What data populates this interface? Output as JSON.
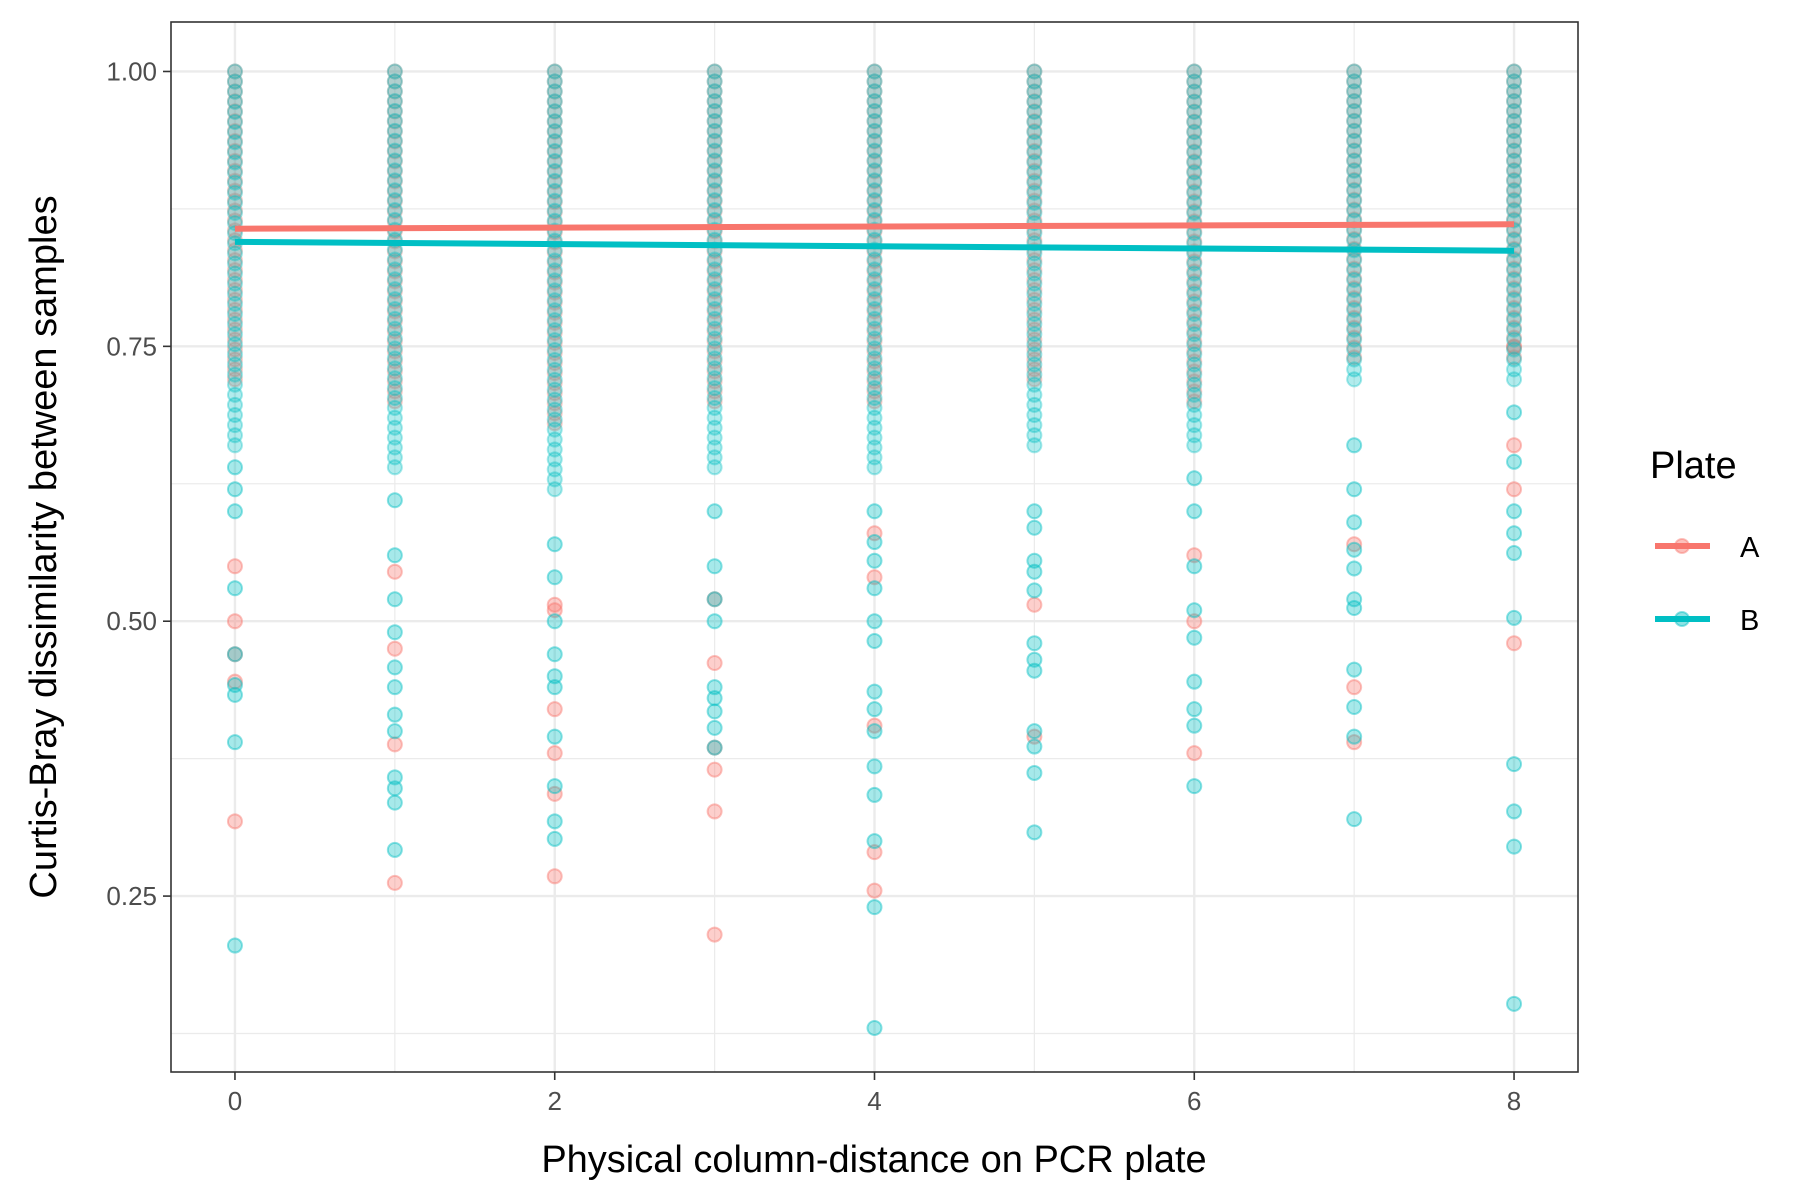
{
  "chart_data": {
    "type": "scatter",
    "xlabel": "Physical column-distance on PCR plate",
    "ylabel": "Curtis-Bray dissimilarity between samples",
    "xlim": [
      -0.4,
      8.4
    ],
    "ylim": [
      0.09,
      1.045
    ],
    "x_ticks": [
      0,
      2,
      4,
      6,
      8
    ],
    "x_tick_labels": [
      "0",
      "2",
      "4",
      "6",
      "8"
    ],
    "y_ticks": [
      0.25,
      0.5,
      0.75,
      1.0
    ],
    "y_tick_labels": [
      "0.25",
      "0.50",
      "0.75",
      "1.00"
    ],
    "grid": true,
    "legend": {
      "title": "Plate",
      "position": "right",
      "entries": [
        "A",
        "B"
      ]
    },
    "colors": {
      "A": "#F8766D",
      "B": "#00BFC4"
    },
    "series": [
      {
        "name": "A",
        "dense_range": [
          [
            0,
            0.72,
            1.0
          ],
          [
            1,
            0.7,
            1.0
          ],
          [
            2,
            0.68,
            1.0
          ],
          [
            3,
            0.7,
            1.0
          ],
          [
            4,
            0.7,
            1.0
          ],
          [
            5,
            0.72,
            1.0
          ],
          [
            6,
            0.7,
            1.0
          ],
          [
            7,
            0.74,
            1.0
          ],
          [
            8,
            0.74,
            1.0
          ]
        ],
        "points": [
          [
            0,
            0.318
          ],
          [
            0,
            0.445
          ],
          [
            0,
            0.47
          ],
          [
            0,
            0.5
          ],
          [
            0,
            0.55
          ],
          [
            1,
            0.262
          ],
          [
            1,
            0.388
          ],
          [
            1,
            0.475
          ],
          [
            1,
            0.545
          ],
          [
            2,
            0.268
          ],
          [
            2,
            0.343
          ],
          [
            2,
            0.38
          ],
          [
            2,
            0.42
          ],
          [
            2,
            0.51
          ],
          [
            2,
            0.515
          ],
          [
            3,
            0.215
          ],
          [
            3,
            0.327
          ],
          [
            3,
            0.365
          ],
          [
            3,
            0.385
          ],
          [
            3,
            0.462
          ],
          [
            3,
            0.52
          ],
          [
            4,
            0.255
          ],
          [
            4,
            0.29
          ],
          [
            4,
            0.405
          ],
          [
            4,
            0.54
          ],
          [
            4,
            0.58
          ],
          [
            5,
            0.395
          ],
          [
            5,
            0.515
          ],
          [
            6,
            0.38
          ],
          [
            6,
            0.5
          ],
          [
            6,
            0.56
          ],
          [
            7,
            0.39
          ],
          [
            7,
            0.44
          ],
          [
            7,
            0.57
          ],
          [
            8,
            0.48
          ],
          [
            8,
            0.62
          ],
          [
            8,
            0.66
          ],
          [
            8,
            0.75
          ]
        ],
        "trend": [
          [
            0,
            0.857
          ],
          [
            8,
            0.861
          ]
        ]
      },
      {
        "name": "B",
        "dense_range": [
          [
            0,
            0.66,
            1.0
          ],
          [
            1,
            0.64,
            1.0
          ],
          [
            2,
            0.62,
            1.0
          ],
          [
            3,
            0.64,
            1.0
          ],
          [
            4,
            0.64,
            1.0
          ],
          [
            5,
            0.66,
            1.0
          ],
          [
            6,
            0.66,
            1.0
          ],
          [
            7,
            0.72,
            1.0
          ],
          [
            8,
            0.72,
            1.0
          ]
        ],
        "points": [
          [
            0,
            0.205
          ],
          [
            0,
            0.39
          ],
          [
            0,
            0.433
          ],
          [
            0,
            0.442
          ],
          [
            0,
            0.47
          ],
          [
            0,
            0.53
          ],
          [
            0,
            0.6
          ],
          [
            0,
            0.62
          ],
          [
            0,
            0.64
          ],
          [
            1,
            0.292
          ],
          [
            1,
            0.335
          ],
          [
            1,
            0.348
          ],
          [
            1,
            0.358
          ],
          [
            1,
            0.4
          ],
          [
            1,
            0.415
          ],
          [
            1,
            0.44
          ],
          [
            1,
            0.458
          ],
          [
            1,
            0.49
          ],
          [
            1,
            0.52
          ],
          [
            1,
            0.56
          ],
          [
            1,
            0.61
          ],
          [
            2,
            0.302
          ],
          [
            2,
            0.318
          ],
          [
            2,
            0.35
          ],
          [
            2,
            0.395
          ],
          [
            2,
            0.44
          ],
          [
            2,
            0.45
          ],
          [
            2,
            0.47
          ],
          [
            2,
            0.5
          ],
          [
            2,
            0.54
          ],
          [
            2,
            0.57
          ],
          [
            3,
            0.385
          ],
          [
            3,
            0.403
          ],
          [
            3,
            0.418
          ],
          [
            3,
            0.43
          ],
          [
            3,
            0.44
          ],
          [
            3,
            0.5
          ],
          [
            3,
            0.52
          ],
          [
            3,
            0.55
          ],
          [
            3,
            0.6
          ],
          [
            4,
            0.13
          ],
          [
            4,
            0.24
          ],
          [
            4,
            0.3
          ],
          [
            4,
            0.342
          ],
          [
            4,
            0.368
          ],
          [
            4,
            0.4
          ],
          [
            4,
            0.42
          ],
          [
            4,
            0.436
          ],
          [
            4,
            0.482
          ],
          [
            4,
            0.5
          ],
          [
            4,
            0.53
          ],
          [
            4,
            0.555
          ],
          [
            4,
            0.572
          ],
          [
            4,
            0.6
          ],
          [
            5,
            0.308
          ],
          [
            5,
            0.362
          ],
          [
            5,
            0.386
          ],
          [
            5,
            0.4
          ],
          [
            5,
            0.455
          ],
          [
            5,
            0.465
          ],
          [
            5,
            0.48
          ],
          [
            5,
            0.528
          ],
          [
            5,
            0.545
          ],
          [
            5,
            0.555
          ],
          [
            5,
            0.585
          ],
          [
            5,
            0.6
          ],
          [
            6,
            0.35
          ],
          [
            6,
            0.405
          ],
          [
            6,
            0.42
          ],
          [
            6,
            0.445
          ],
          [
            6,
            0.485
          ],
          [
            6,
            0.51
          ],
          [
            6,
            0.55
          ],
          [
            6,
            0.6
          ],
          [
            6,
            0.63
          ],
          [
            7,
            0.32
          ],
          [
            7,
            0.395
          ],
          [
            7,
            0.422
          ],
          [
            7,
            0.456
          ],
          [
            7,
            0.512
          ],
          [
            7,
            0.52
          ],
          [
            7,
            0.548
          ],
          [
            7,
            0.565
          ],
          [
            7,
            0.59
          ],
          [
            7,
            0.62
          ],
          [
            7,
            0.66
          ],
          [
            8,
            0.152
          ],
          [
            8,
            0.295
          ],
          [
            8,
            0.327
          ],
          [
            8,
            0.37
          ],
          [
            8,
            0.503
          ],
          [
            8,
            0.562
          ],
          [
            8,
            0.58
          ],
          [
            8,
            0.6
          ],
          [
            8,
            0.645
          ],
          [
            8,
            0.69
          ]
        ],
        "trend": [
          [
            0,
            0.845
          ],
          [
            8,
            0.837
          ]
        ]
      }
    ]
  }
}
